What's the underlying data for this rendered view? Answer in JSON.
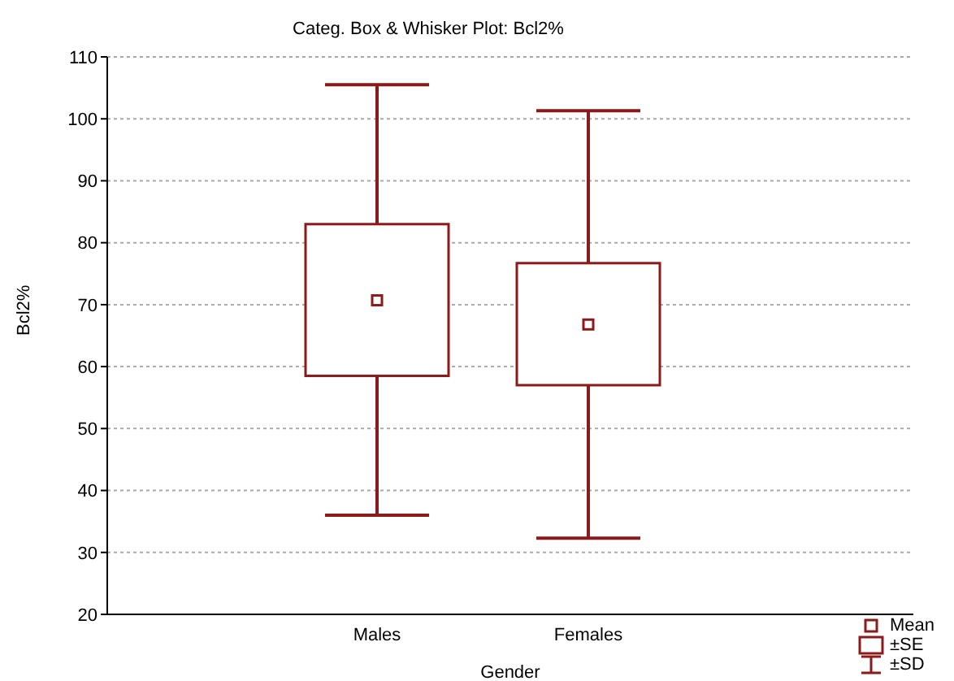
{
  "chart_data": {
    "type": "box",
    "title": "Categ. Box & Whisker Plot:    Bcl2%",
    "xlabel": "Gender",
    "ylabel": "Bcl2%",
    "categories": [
      "Males",
      "Females"
    ],
    "boxes": [
      {
        "low": 36,
        "q1": 58.5,
        "median": 70.7,
        "q3": 83,
        "high": 105.5
      },
      {
        "low": 32.3,
        "q1": 57,
        "median": 66.8,
        "q3": 76.7,
        "high": 101.3
      }
    ],
    "color": "#8b1a1a",
    "ylim": [
      20,
      110
    ],
    "yticks": [
      20,
      30,
      40,
      50,
      60,
      70,
      80,
      90,
      100,
      110
    ],
    "grid": "y",
    "marker": "square",
    "annotations": [
      "Mean",
      "±SE",
      "±SD"
    ]
  }
}
